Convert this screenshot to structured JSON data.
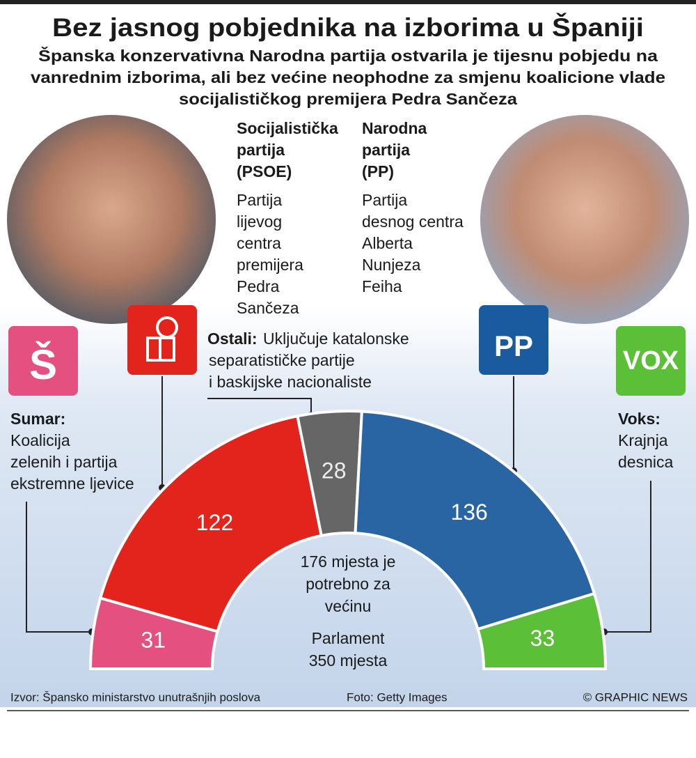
{
  "title": "Bez jasnog pobjednika na izborima u Španiji",
  "subtitle": [
    "Španska konzervativna Narodna partija ostvarila je tijesnu pobjedu na",
    "vanrednim izborima, ali bez većine neophodne za smjenu koalicione vlade",
    "socijalističkog premijera Pedra Sančeza"
  ],
  "parties": [
    {
      "name": [
        "Socijalistička",
        "partija",
        "(PSOE)"
      ],
      "description": [
        "Partija",
        "lijevog",
        "centra",
        "premijera",
        "Pedra",
        "Sančeza"
      ]
    },
    {
      "name": [
        "Narodna",
        "partija",
        "(PP)"
      ],
      "description": [
        "Partija",
        "desnog centra",
        "Alberta",
        "Nunjeza",
        "Feiha"
      ]
    }
  ],
  "logos": {
    "sumar": "Š",
    "pp": "PP",
    "vox": "VOX"
  },
  "annotations": {
    "ostali": {
      "label": "Ostali:",
      "text": [
        "Uključuje katalonske",
        "separatističke partije",
        "i baskijske nacionaliste"
      ]
    },
    "sumar": {
      "label": "Sumar:",
      "text": [
        "Koalicija",
        "zelenih i partija",
        "ekstremne ljevice"
      ]
    },
    "voks": {
      "label": "Voks:",
      "text": [
        "Krajnja",
        "desnica"
      ]
    }
  },
  "chart_data": {
    "type": "half-donut",
    "values": [
      31,
      122,
      28,
      136,
      33
    ],
    "colors": [
      "#e4507f",
      "#e3241d",
      "#666666",
      "#2a65a3",
      "#5cbf38"
    ],
    "center_text": [
      "176 mjesta je",
      "potrebno za",
      "većinu"
    ],
    "total_text": [
      "Parlament",
      "350 mjesta"
    ]
  },
  "footer": {
    "source": "Izvor: Špansko ministarstvo unutrašnjih poslova",
    "photo": "Foto: Getty Images",
    "credit": "© GRAPHIC NEWS"
  }
}
